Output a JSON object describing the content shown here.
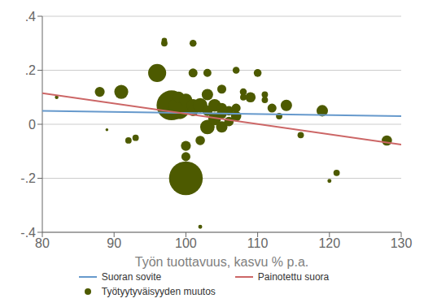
{
  "chart_data": {
    "type": "scatter",
    "xlabel": "Työn tuottavuus, kasvu % p.a.",
    "xlim": [
      80,
      130
    ],
    "ylim": [
      -0.4,
      0.4
    ],
    "xticks": [
      80,
      90,
      100,
      110,
      120,
      130
    ],
    "yticks": [
      {
        "value": -0.4,
        "label": "-.4"
      },
      {
        "value": -0.2,
        "label": "-.2"
      },
      0,
      {
        "value": 0.2,
        "label": ".2"
      },
      {
        "value": 0.4,
        "label": ".4"
      }
    ],
    "grid": "y",
    "legend": "bottom",
    "series": [
      {
        "name": "Suoran sovite",
        "type": "line",
        "color": "#6699cc",
        "x": [
          80,
          130
        ],
        "values": [
          0.05,
          0.03
        ]
      },
      {
        "name": "Painotettu suora",
        "type": "line",
        "color": "#cc6666",
        "x": [
          80,
          130
        ],
        "values": [
          0.115,
          -0.075
        ]
      },
      {
        "name": "Työtyytyväisyyden muutos",
        "type": "scatter",
        "marker": "circle",
        "color": "#4d5a00",
        "x": [
          82,
          88,
          89,
          91,
          92,
          93,
          96,
          97,
          97,
          98,
          99,
          99,
          100,
          100,
          100,
          100,
          101,
          101,
          101,
          101,
          102,
          102,
          102,
          103,
          103,
          103,
          103,
          104,
          104,
          105,
          105,
          105,
          105,
          106,
          106,
          107,
          107,
          107,
          108,
          108,
          109,
          110,
          111,
          111,
          112,
          113,
          114,
          116,
          119,
          120,
          121,
          128
        ],
        "values": [
          0.1,
          0.12,
          -0.02,
          0.12,
          -0.06,
          -0.05,
          0.19,
          0.3,
          0.31,
          0.07,
          0.06,
          0.1,
          0.09,
          -0.08,
          -0.2,
          -0.12,
          0.3,
          0.19,
          0.07,
          0.05,
          0.07,
          -0.06,
          -0.38,
          0.19,
          0.11,
          0.05,
          -0.01,
          0.07,
          0.02,
          0.13,
          0.06,
          0.04,
          -0.01,
          0.05,
          0.01,
          0.2,
          0.06,
          0.03,
          0.12,
          0.1,
          0.1,
          0.19,
          0.11,
          0.09,
          0.06,
          0.03,
          0.07,
          -0.04,
          0.05,
          -0.21,
          -0.18,
          -0.06
        ],
        "sizes": [
          8,
          60,
          5,
          120,
          25,
          25,
          200,
          25,
          18,
          550,
          300,
          80,
          100,
          60,
          700,
          50,
          30,
          50,
          100,
          70,
          130,
          55,
          10,
          40,
          80,
          65,
          130,
          100,
          100,
          50,
          65,
          65,
          80,
          55,
          55,
          30,
          50,
          65,
          30,
          25,
          65,
          38,
          25,
          25,
          50,
          25,
          80,
          25,
          80,
          10,
          25,
          65
        ]
      }
    ]
  }
}
